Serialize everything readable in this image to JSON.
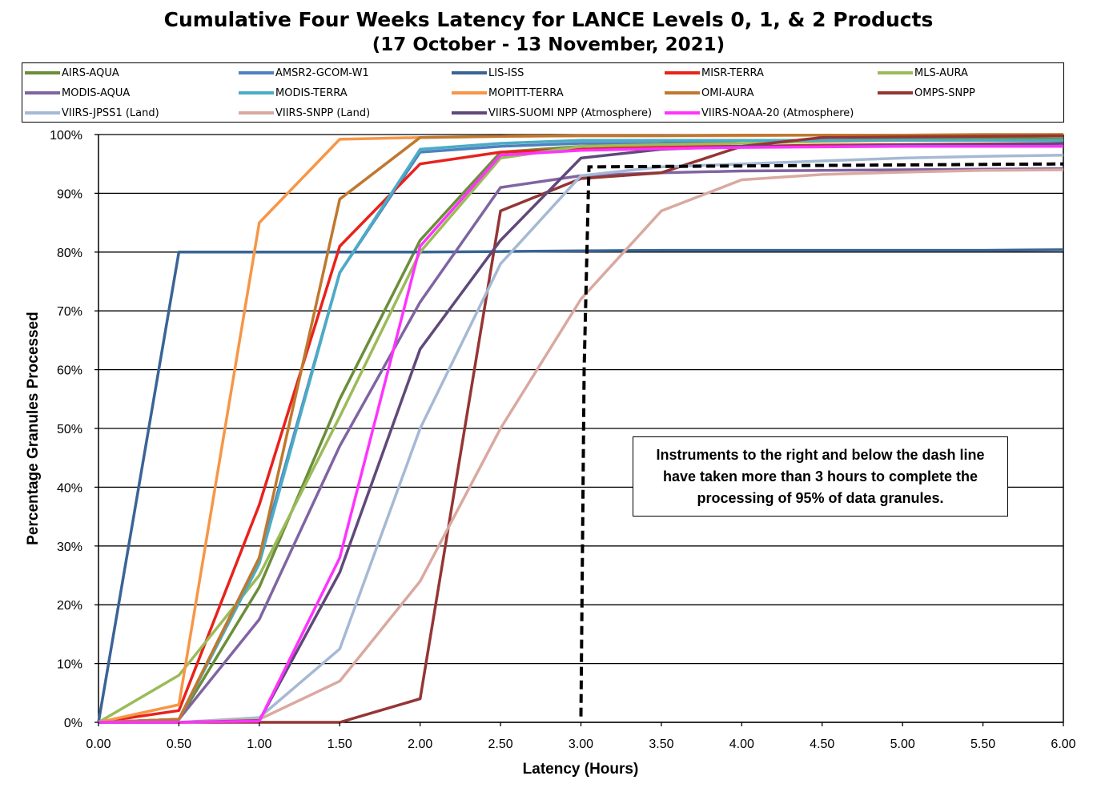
{
  "chart_data": {
    "type": "line",
    "title": "Cumulative Four Weeks Latency  for LANCE Levels 0, 1, & 2 Products",
    "subtitle": "(17  October   -  13  November,  2021)",
    "xlabel": "Latency (Hours)",
    "ylabel": "Percentage Granules Processed",
    "xlim": [
      0,
      6
    ],
    "ylim": [
      0,
      100
    ],
    "xticks": [
      "0.00",
      "0.50",
      "1.00",
      "1.50",
      "2.00",
      "2.50",
      "3.00",
      "3.50",
      "4.00",
      "4.50",
      "5.00",
      "5.50",
      "6.00"
    ],
    "yticks": [
      "0%",
      "10%",
      "20%",
      "30%",
      "40%",
      "50%",
      "60%",
      "70%",
      "80%",
      "90%",
      "100%"
    ],
    "grid": "horizontal",
    "legend_position": "top",
    "x": [
      0,
      0.5,
      1,
      1.5,
      2,
      2.5,
      3,
      3.5,
      4,
      4.5,
      5,
      5.5,
      6
    ],
    "series": [
      {
        "name": "AIRS-AQUA",
        "color": "#6B8E3A",
        "values": [
          0,
          0.5,
          23,
          55,
          82,
          97,
          98,
          98.5,
          99,
          99,
          99.2,
          99.3,
          99.3
        ]
      },
      {
        "name": "AMSR2-GCOM-W1",
        "color": "#4F81BD",
        "values": [
          0,
          0.5,
          28,
          76.5,
          97,
          98,
          98.5,
          98.5,
          99,
          99,
          99,
          99,
          99
        ]
      },
      {
        "name": "LIS-ISS",
        "color": "#3A6495",
        "values": [
          0,
          80,
          80,
          80,
          80,
          80.1,
          80.2,
          80.3,
          80.3,
          80.3,
          80.3,
          80.3,
          80.4
        ]
      },
      {
        "name": "MISR-TERRA",
        "color": "#E8221C",
        "values": [
          0,
          2,
          37,
          81,
          95,
          97,
          97.5,
          98,
          98,
          98.2,
          98.3,
          98.4,
          98.5
        ]
      },
      {
        "name": "MLS-AURA",
        "color": "#9BBB59",
        "values": [
          0,
          8,
          25,
          52,
          80,
          96,
          98,
          98.3,
          98.5,
          98.8,
          99,
          99,
          99
        ]
      },
      {
        "name": "MODIS-AQUA",
        "color": "#8064A2",
        "values": [
          0,
          0.5,
          17.5,
          47,
          71.5,
          91,
          93,
          93.5,
          93.8,
          93.9,
          94,
          94.1,
          94.2
        ]
      },
      {
        "name": "MODIS-TERRA",
        "color": "#4BACC6",
        "values": [
          0,
          0.5,
          27,
          76.5,
          97.5,
          98.5,
          99,
          99,
          99,
          99,
          99,
          99,
          99
        ]
      },
      {
        "name": "MOPITT-TERRA",
        "color": "#F79646",
        "values": [
          0,
          3,
          85,
          99.2,
          99.5,
          99.7,
          99.8,
          99.8,
          99.8,
          99.9,
          99.9,
          99.9,
          100
        ]
      },
      {
        "name": "OMI-AURA",
        "color": "#C0782E",
        "values": [
          0,
          0.5,
          28,
          89,
          99.5,
          99.7,
          99.8,
          99.8,
          99.9,
          99.9,
          99.9,
          100,
          100
        ]
      },
      {
        "name": "OMPS-SNPP",
        "color": "#943634",
        "values": [
          0,
          0,
          0,
          0,
          4,
          87,
          92.5,
          93.5,
          98,
          99.5,
          99.6,
          99.7,
          99.8
        ]
      },
      {
        "name": "VIIRS-JPSS1 (Land)",
        "color": "#A6B9D4",
        "values": [
          0,
          0,
          0.8,
          12.5,
          50,
          78,
          93,
          94.5,
          95,
          95.5,
          96,
          96.3,
          96.5
        ]
      },
      {
        "name": "VIIRS-SNPP (Land)",
        "color": "#D9A9A0",
        "values": [
          0,
          0,
          0.5,
          7,
          24,
          50,
          72,
          87,
          92.3,
          93.2,
          93.6,
          93.9,
          94
        ]
      },
      {
        "name": "VIIRS-SUOMI NPP (Atmosphere)",
        "color": "#60497A",
        "values": [
          0,
          0,
          0.3,
          25.5,
          63.5,
          82,
          96,
          97.5,
          98,
          98,
          98.2,
          98.3,
          98.5
        ]
      },
      {
        "name": "VIIRS-NOAA-20 (Atmosphere)",
        "color": "#FF33FF",
        "values": [
          0,
          0,
          0.2,
          28,
          81,
          96.5,
          97.3,
          97.6,
          97.8,
          97.9,
          98,
          98,
          98
        ]
      }
    ],
    "threshold_line": {
      "style": "dashed",
      "color": "#000000",
      "points": [
        [
          3.0,
          1
        ],
        [
          3.02,
          60
        ],
        [
          3.05,
          94.5
        ],
        [
          6.0,
          95
        ]
      ]
    },
    "annotation": "Instruments to the right and below the dash line have taken more than 3 hours to complete the processing of 95% of data granules."
  }
}
